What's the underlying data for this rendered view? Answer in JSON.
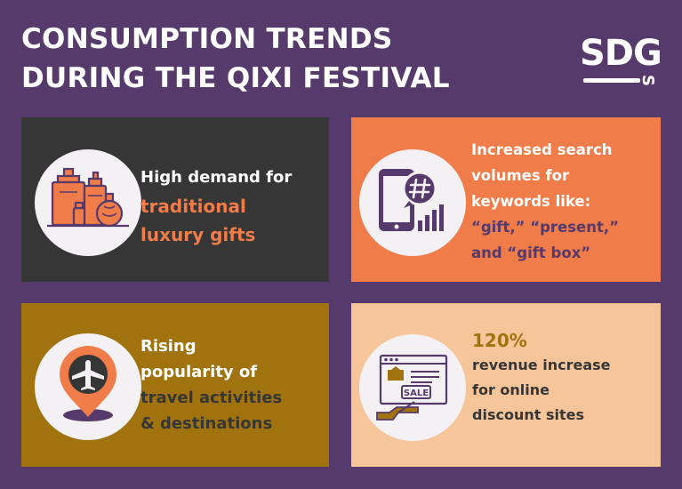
{
  "header": {
    "title_line1": "CONSUMPTION TRENDS",
    "title_line2": "DURING THE QIXI FESTIVAL"
  },
  "logo": {
    "text": "SDG",
    "suffix": "S"
  },
  "cards": [
    {
      "icon": "luxury-gifts-icon",
      "lines": [
        "High demand for",
        "traditional",
        "luxury gifts"
      ]
    },
    {
      "icon": "phone-hashtag-icon",
      "lines": [
        "Increased search",
        "volumes for",
        "keywords like:",
        "“gift,” “present,”",
        "and “gift box”"
      ]
    },
    {
      "icon": "airplane-location-pin-icon",
      "lines": [
        "Rising",
        "popularity of",
        "travel activities",
        "& destinations"
      ]
    },
    {
      "icon": "online-sale-icon",
      "lines": [
        "120%",
        "revenue increase",
        "for online",
        "discount sites"
      ]
    }
  ],
  "colors": {
    "background": "#573a6c",
    "card1": "#363636",
    "card2": "#f07c4a",
    "card3": "#a1730f",
    "card4": "#f6c69a",
    "accent_orange": "#f07c4a",
    "accent_purple": "#573a6c"
  }
}
